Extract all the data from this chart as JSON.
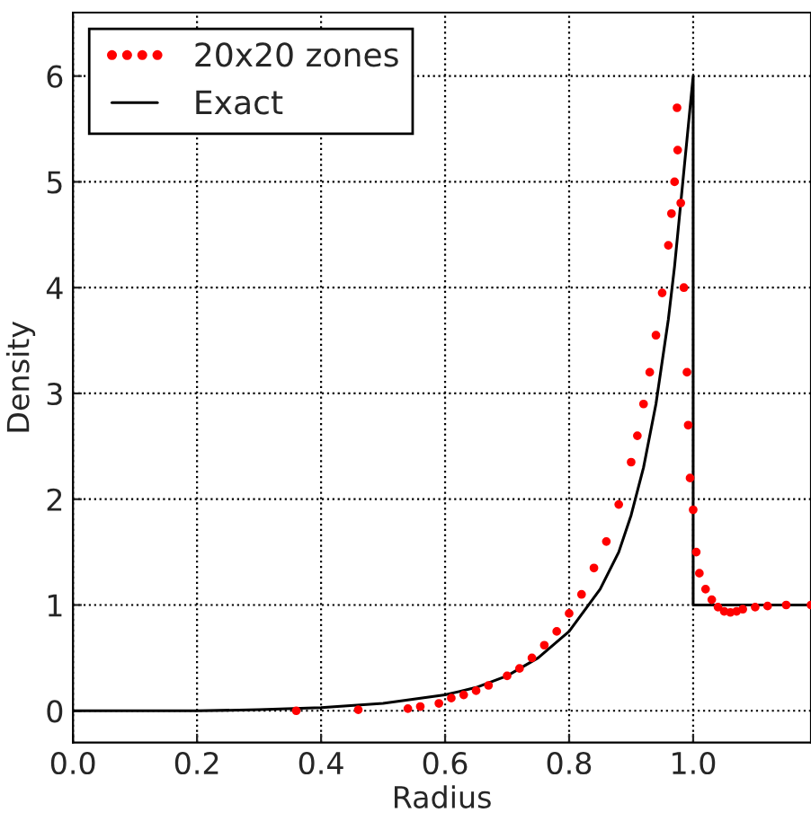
{
  "chart_data": {
    "type": "scatter",
    "xlabel": "Radius",
    "ylabel": "Density",
    "xlim": [
      0,
      1.19
    ],
    "ylim": [
      -0.3,
      6.6
    ],
    "xticks": [
      {
        "value": 0,
        "label": "0.0"
      },
      {
        "value": 0.2,
        "label": "0.2"
      },
      {
        "value": 0.4,
        "label": "0.4"
      },
      {
        "value": 0.6,
        "label": "0.6"
      },
      {
        "value": 0.8,
        "label": "0.8"
      },
      {
        "value": 1.0,
        "label": "1.0"
      }
    ],
    "yticks": [
      0,
      1,
      2,
      3,
      4,
      5,
      6
    ],
    "grid": true,
    "legend": "top left",
    "series": [
      {
        "name": "20x20 zones",
        "marker": "circle",
        "color": "#ff0000",
        "x": [
          0.36,
          0.46,
          0.54,
          0.56,
          0.59,
          0.61,
          0.63,
          0.65,
          0.67,
          0.7,
          0.72,
          0.74,
          0.76,
          0.78,
          0.8,
          0.82,
          0.84,
          0.86,
          0.88,
          0.9,
          0.91,
          0.92,
          0.93,
          0.94,
          0.95,
          0.96,
          0.965,
          0.97,
          0.975,
          0.974,
          0.98,
          0.985,
          0.99,
          0.992,
          0.995,
          1.0,
          1.005,
          1.01,
          1.02,
          1.03,
          1.04,
          1.05,
          1.06,
          1.07,
          1.08,
          1.1,
          1.12,
          1.15,
          1.19
        ],
        "values": [
          0.0,
          0.01,
          0.02,
          0.04,
          0.07,
          0.12,
          0.15,
          0.19,
          0.24,
          0.33,
          0.4,
          0.5,
          0.62,
          0.75,
          0.92,
          1.1,
          1.35,
          1.6,
          1.95,
          2.35,
          2.6,
          2.9,
          3.2,
          3.55,
          3.95,
          4.4,
          4.7,
          5.0,
          5.3,
          5.7,
          4.8,
          4.0,
          3.2,
          2.7,
          2.2,
          1.9,
          1.5,
          1.3,
          1.15,
          1.05,
          0.98,
          0.94,
          0.93,
          0.94,
          0.96,
          0.98,
          0.99,
          1.0,
          1.0
        ]
      },
      {
        "name": "Exact",
        "type": "line",
        "color": "#000000",
        "line_style": "solid",
        "x": [
          0.0,
          0.2,
          0.3,
          0.4,
          0.5,
          0.6,
          0.65,
          0.7,
          0.75,
          0.8,
          0.85,
          0.88,
          0.9,
          0.92,
          0.94,
          0.96,
          0.97,
          0.98,
          0.99,
          1.0,
          1.0,
          1.19
        ],
        "values": [
          0,
          0,
          0.01,
          0.03,
          0.07,
          0.15,
          0.22,
          0.33,
          0.5,
          0.75,
          1.15,
          1.5,
          1.85,
          2.3,
          2.9,
          3.7,
          4.2,
          4.8,
          5.4,
          6,
          1,
          1
        ]
      }
    ]
  }
}
